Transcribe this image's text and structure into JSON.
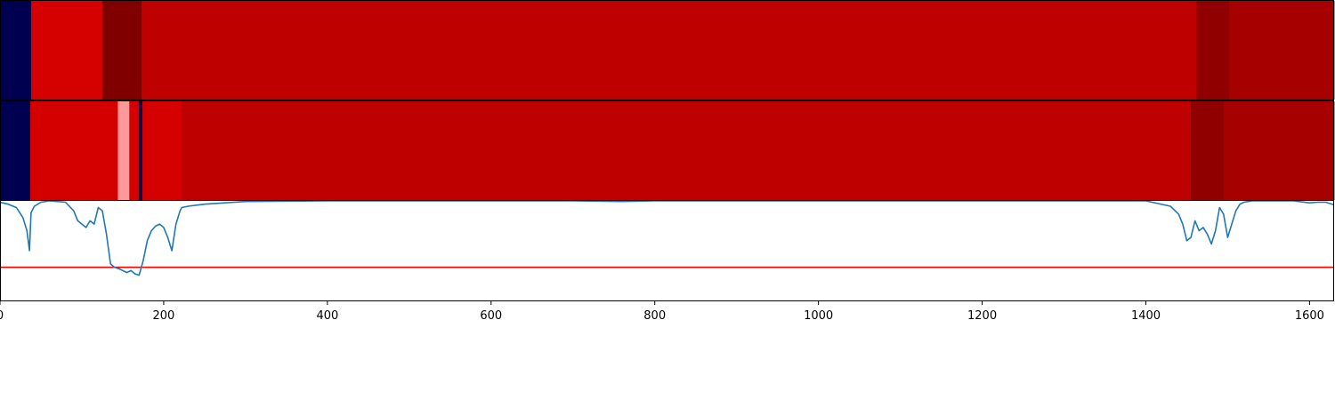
{
  "chart_data": [
    {
      "type": "heatmap",
      "x_axis_shared": true,
      "xlim": [
        0,
        1630
      ],
      "segments": [
        {
          "x0": 0,
          "x1": 38,
          "color": "#000050"
        },
        {
          "x0": 38,
          "x1": 125,
          "color": "#d50000"
        },
        {
          "x0": 125,
          "x1": 173,
          "color": "#800000"
        },
        {
          "x0": 173,
          "x1": 1462,
          "color": "#bf0000"
        },
        {
          "x0": 1462,
          "x1": 1502,
          "color": "#900000"
        },
        {
          "x0": 1502,
          "x1": 1630,
          "color": "#a60000"
        }
      ]
    },
    {
      "type": "heatmap",
      "x_axis_shared": true,
      "xlim": [
        0,
        1630
      ],
      "segments": [
        {
          "x0": 0,
          "x1": 37,
          "color": "#000050"
        },
        {
          "x0": 37,
          "x1": 144,
          "color": "#d40000"
        },
        {
          "x0": 144,
          "x1": 158,
          "color": "#ff9999"
        },
        {
          "x0": 158,
          "x1": 170,
          "color": "#d40000"
        },
        {
          "x0": 170,
          "x1": 174,
          "color": "#000050"
        },
        {
          "x0": 174,
          "x1": 222,
          "color": "#d50000"
        },
        {
          "x0": 222,
          "x1": 1455,
          "color": "#bf0000"
        },
        {
          "x0": 1455,
          "x1": 1495,
          "color": "#900000"
        },
        {
          "x0": 1495,
          "x1": 1630,
          "color": "#a60000"
        }
      ]
    },
    {
      "type": "line",
      "xlim": [
        0,
        1630
      ],
      "ylim": [
        -1.5,
        0
      ],
      "grid": false,
      "x_ticks": [
        0,
        200,
        400,
        600,
        800,
        1000,
        1200,
        1400,
        1600
      ],
      "x_tick_labels": [
        "0",
        "200",
        "400",
        "600",
        "800",
        "1000",
        "1200",
        "1400",
        "1600"
      ],
      "line_color": "#1f77b4",
      "threshold": {
        "value": -1.0,
        "color": "#ff0000"
      },
      "series": [
        {
          "x": [
            0,
            10,
            20,
            28,
            33,
            36,
            38,
            42,
            50,
            60,
            80,
            90,
            95,
            100,
            105,
            110,
            115,
            120,
            125,
            130,
            135,
            140,
            145,
            150,
            155,
            160,
            165,
            170,
            175,
            180,
            185,
            190,
            195,
            200,
            205,
            210,
            215,
            220,
            222,
            230,
            250,
            300,
            400,
            500,
            600,
            700,
            760,
            800,
            900,
            1000,
            1100,
            1200,
            1300,
            1400,
            1430,
            1440,
            1445,
            1450,
            1455,
            1460,
            1465,
            1470,
            1475,
            1480,
            1485,
            1490,
            1495,
            1500,
            1505,
            1510,
            1515,
            1520,
            1525,
            1530,
            1540,
            1560,
            1580,
            1600,
            1610,
            1620,
            1630
          ],
          "y": [
            -0.02,
            -0.05,
            -0.1,
            -0.25,
            -0.45,
            -0.75,
            -0.18,
            -0.08,
            -0.02,
            0.0,
            -0.02,
            -0.15,
            -0.3,
            -0.35,
            -0.4,
            -0.3,
            -0.35,
            -0.1,
            -0.15,
            -0.5,
            -0.95,
            -1.0,
            -1.02,
            -1.05,
            -1.08,
            -1.05,
            -1.1,
            -1.12,
            -0.9,
            -0.6,
            -0.45,
            -0.38,
            -0.35,
            -0.4,
            -0.55,
            -0.75,
            -0.35,
            -0.15,
            -0.1,
            -0.08,
            -0.05,
            -0.01,
            0.0,
            0.0,
            0.0,
            0.0,
            -0.01,
            0.0,
            0.0,
            0.0,
            0.0,
            0.0,
            0.0,
            0.0,
            -0.08,
            -0.2,
            -0.35,
            -0.6,
            -0.55,
            -0.3,
            -0.45,
            -0.4,
            -0.5,
            -0.65,
            -0.45,
            -0.1,
            -0.2,
            -0.55,
            -0.35,
            -0.15,
            -0.05,
            -0.02,
            -0.01,
            0.0,
            0.0,
            0.0,
            0.0,
            -0.03,
            -0.02,
            -0.02,
            -0.06
          ]
        }
      ]
    }
  ]
}
